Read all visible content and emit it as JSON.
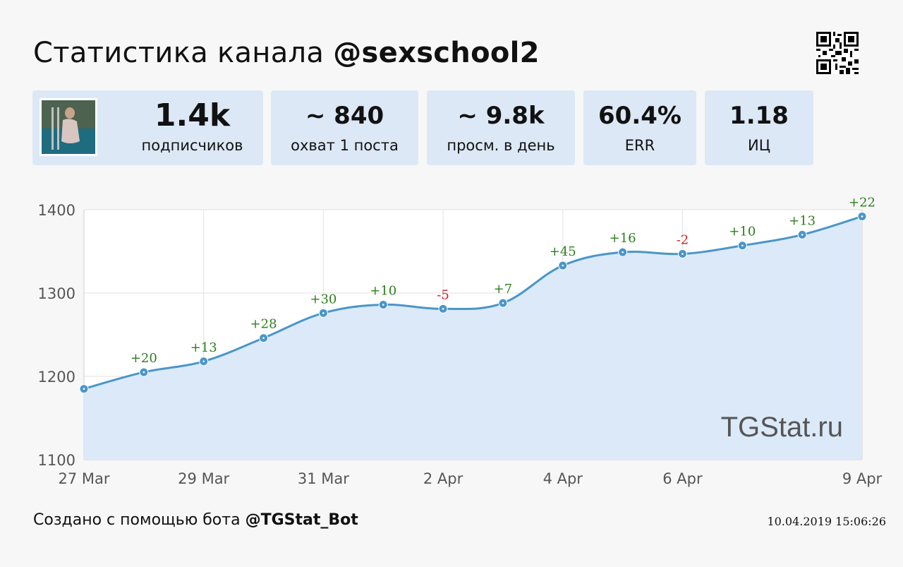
{
  "header": {
    "title_prefix": "Статистика канала",
    "channel": "@sexschool2"
  },
  "cards": {
    "subscribers": {
      "value": "1.4k",
      "label": "подписчиков"
    },
    "reach": {
      "value": "~ 840",
      "label": "охват 1 поста"
    },
    "views": {
      "value": "~ 9.8k",
      "label": "просм. в день"
    },
    "err": {
      "value": "60.4%",
      "label": "ERR"
    },
    "ic": {
      "value": "1.18",
      "label": "ИЦ"
    }
  },
  "watermark": "TGStat.ru",
  "footer": {
    "prefix": "Создано с помощью бота",
    "bot": "@TGStat_Bot",
    "timestamp": "10.04.2019 15:06:26"
  },
  "colors": {
    "line": "#4a96c8",
    "area": "#dbe9f8",
    "positive": "#2e7d1f",
    "negative": "#cc2020"
  },
  "chart_data": {
    "type": "area",
    "x": [
      "27 Mar",
      "28 Mar",
      "29 Mar",
      "30 Mar",
      "31 Mar",
      "1 Apr",
      "2 Apr",
      "3 Apr",
      "4 Apr",
      "5 Apr",
      "6 Apr",
      "7 Apr",
      "8 Apr",
      "9 Apr"
    ],
    "values": [
      1185,
      1205,
      1218,
      1246,
      1276,
      1286,
      1281,
      1288,
      1333,
      1349,
      1347,
      1357,
      1370,
      1392
    ],
    "point_labels": [
      "",
      "+20",
      "+13",
      "+28",
      "+30",
      "+10",
      "-5",
      "+7",
      "+45",
      "+16",
      "-2",
      "+10",
      "+13",
      "+22"
    ],
    "x_tick_labels": [
      "27 Mar",
      "",
      "29 Mar",
      "",
      "31 Mar",
      "",
      "2 Apr",
      "",
      "4 Apr",
      "",
      "6 Apr",
      "",
      "",
      "9 Apr"
    ],
    "y_ticks": [
      1100,
      1200,
      1300,
      1400
    ],
    "ylim": [
      1100,
      1400
    ],
    "grid": true,
    "legend": "none"
  }
}
